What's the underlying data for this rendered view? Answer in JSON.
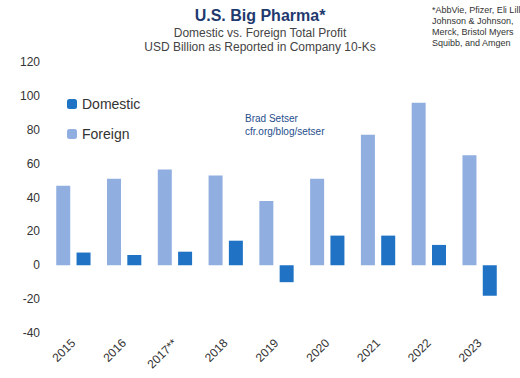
{
  "chart_data": {
    "type": "bar",
    "title": "U.S. Big Pharma*",
    "subtitle": "Domestic vs. Foreign Total Profit\nUSD Billion as Reported in Company 10-Ks",
    "annotations": [
      "Brad Setser\ncfr.org/blog/setser",
      "*AbbVie, Pfizer, Eli Lilly,\nJohnson & Johnson,\nMerck, Bristol Myers\nSquibb, and Amgen"
    ],
    "categories": [
      "2015",
      "2016",
      "2017**",
      "2018",
      "2019",
      "2020",
      "2021",
      "2022",
      "2023"
    ],
    "series": [
      {
        "name": "Foreign",
        "color": "#91aee0",
        "values": [
          47,
          51,
          56.5,
          53,
          38,
          51,
          77,
          96,
          65
        ]
      },
      {
        "name": "Domestic",
        "color": "#1f72c4",
        "values": [
          7.5,
          6,
          8,
          14.5,
          -10,
          17.5,
          17.5,
          12,
          -18
        ]
      }
    ],
    "ylim": [
      -40,
      120
    ],
    "yticks": [
      -40,
      -20,
      0,
      20,
      40,
      60,
      80,
      100,
      120
    ],
    "grid": false,
    "legend": "top-left"
  }
}
